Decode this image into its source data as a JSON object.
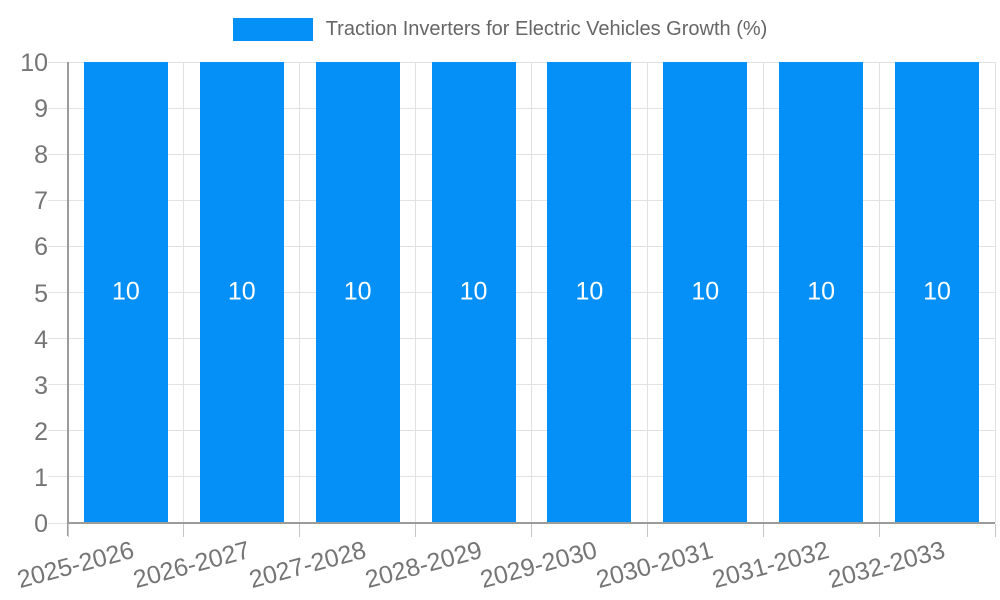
{
  "legend": {
    "label": "Traction Inverters for Electric Vehicles Growth (%)"
  },
  "chart_data": {
    "type": "bar",
    "title": "",
    "categories": [
      "2025-2026",
      "2026-2027",
      "2027-2028",
      "2028-2029",
      "2029-2030",
      "2030-2031",
      "2031-2032",
      "2032-2033"
    ],
    "series": [
      {
        "name": "Traction Inverters for Electric Vehicles Growth (%)",
        "values": [
          10,
          10,
          10,
          10,
          10,
          10,
          10,
          10
        ]
      }
    ],
    "value_labels": [
      "10",
      "10",
      "10",
      "10",
      "10",
      "10",
      "10",
      "10"
    ],
    "xlabel": "",
    "ylabel": "",
    "ylim": [
      0,
      10
    ],
    "ytick_interval": 1,
    "yticks": [
      0,
      1,
      2,
      3,
      4,
      5,
      6,
      7,
      8,
      9,
      10
    ],
    "grid": true,
    "legend_position": "top",
    "colors": {
      "bar": "#0590f8",
      "grid": "#e2e2e2",
      "axis": "#9b9b9b",
      "x_tick_mark": "#c6c6c6",
      "tick_text": "#757575",
      "legend_text": "#666666",
      "bar_label": "#ffffff",
      "background": "#ffffff"
    }
  }
}
